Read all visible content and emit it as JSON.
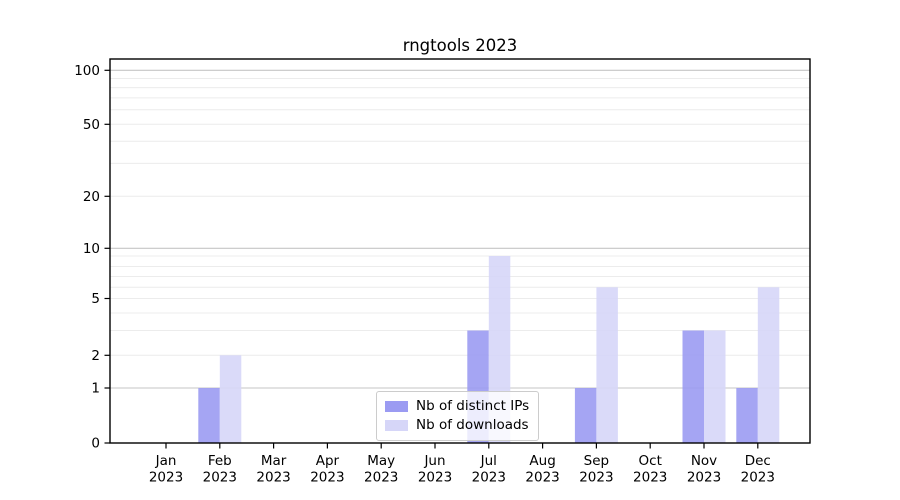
{
  "chart_data": {
    "type": "bar",
    "title": "rngtools 2023",
    "categories": [
      "Jan",
      "Feb",
      "Mar",
      "Apr",
      "May",
      "Jun",
      "Jul",
      "Aug",
      "Sep",
      "Oct",
      "Nov",
      "Dec"
    ],
    "x_tick_year": "2023",
    "series": [
      {
        "name": "Nb of distinct IPs",
        "color": "#9b9bf2",
        "values": [
          0,
          1,
          0,
          0,
          0,
          0,
          3,
          0,
          1,
          0,
          3,
          1
        ]
      },
      {
        "name": "Nb of downloads",
        "color": "#d6d6f8",
        "values": [
          0,
          2,
          0,
          0,
          0,
          0,
          9,
          0,
          6,
          0,
          3,
          6
        ]
      }
    ],
    "y_ticks": [
      0,
      1,
      2,
      5,
      10,
      20,
      50,
      100
    ],
    "y_axis_scale": "log-like (asinh), 0 included",
    "ylim": [
      0,
      115
    ],
    "grid": "horizontal major and minor lines",
    "legend_position": "lower center",
    "colors": {
      "grid_major": "#c6c6c6",
      "grid_minor": "#ececec",
      "axis_spine": "#000000",
      "tick_text": "#000000"
    }
  }
}
